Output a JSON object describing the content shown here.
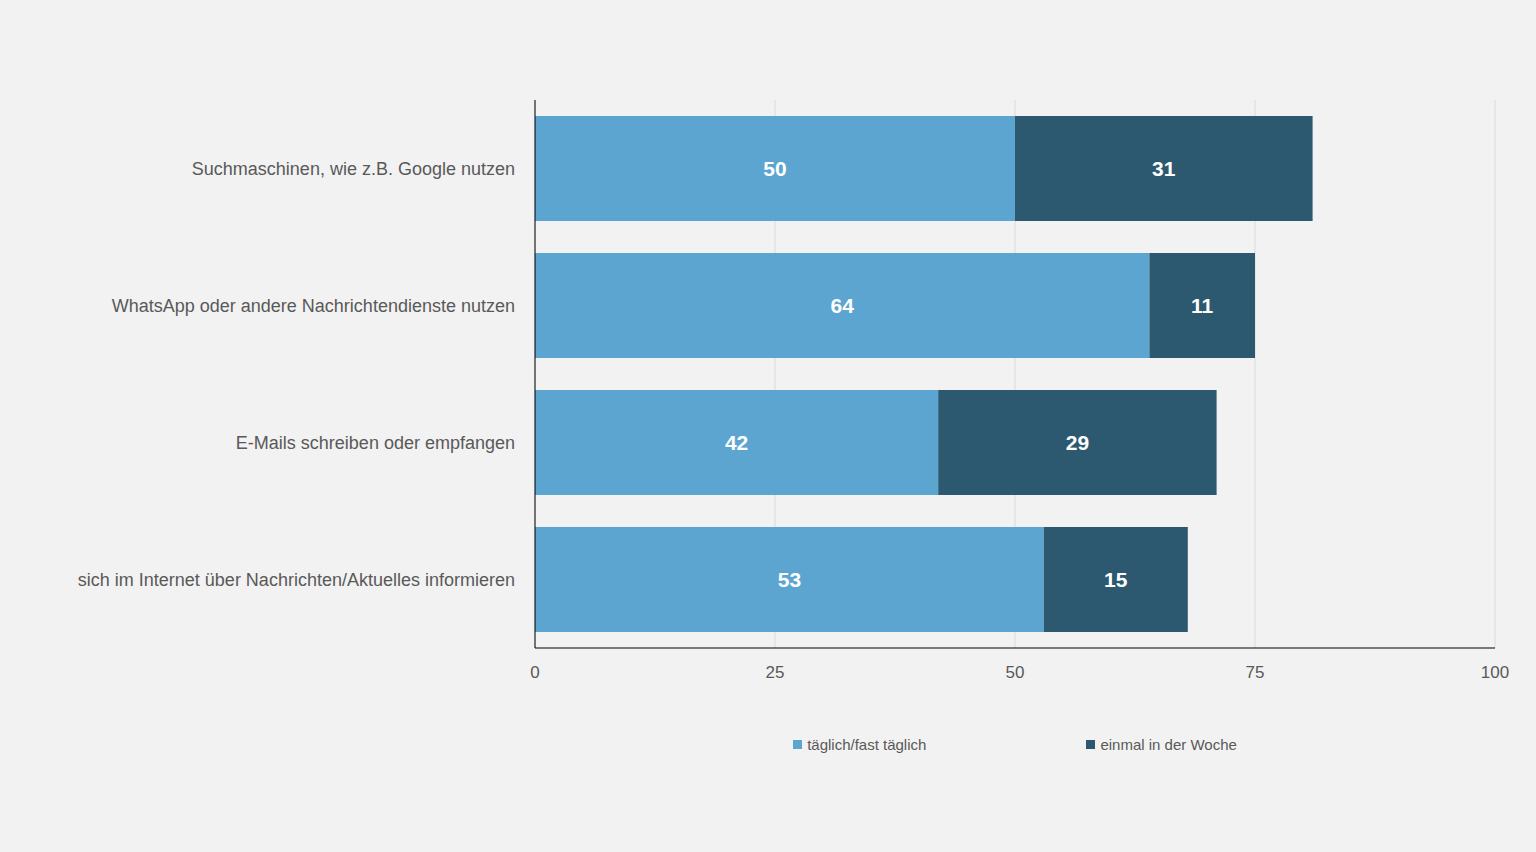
{
  "chart_data": {
    "type": "bar",
    "orientation": "horizontal",
    "stacked": true,
    "data_labels": true,
    "grid": true,
    "legend": "bottom",
    "categories": [
      "Suchmaschinen, wie z.B. Google nutzen",
      "WhatsApp oder andere Nachrichtendienste nutzen",
      "E-Mails schreiben oder empfangen",
      "sich im Internet über Nachrichten/Aktuelles informieren"
    ],
    "series": [
      {
        "name": "täglich/fast täglich",
        "color": "#5ba5d0",
        "values": [
          50,
          64,
          42,
          53
        ]
      },
      {
        "name": "einmal in der Woche",
        "color": "#2c5970",
        "values": [
          31,
          11,
          29,
          15
        ]
      }
    ],
    "xlim": [
      0,
      100
    ],
    "xticks": [
      0,
      25,
      50,
      75,
      100
    ]
  }
}
